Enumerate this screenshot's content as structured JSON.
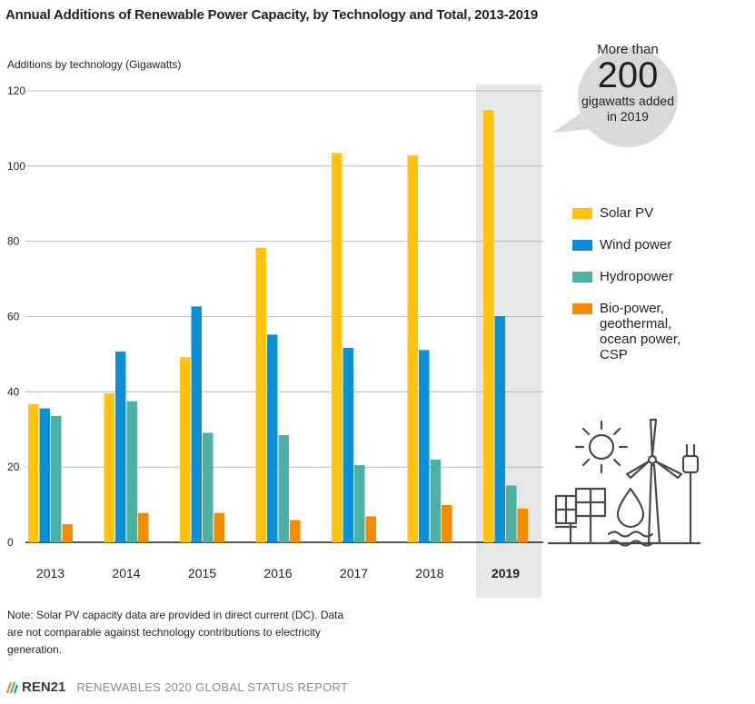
{
  "title": "Annual Additions of Renewable Power Capacity, by Technology and Total, 2013-2019",
  "colors": {
    "solar": "#FFC20E",
    "wind": "#0D8FD6",
    "hydro": "#4DB0A0",
    "bio": "#F08C00",
    "highlight": "#E6E7E8",
    "grid": "#B0B0B0",
    "bubble": "#D9D9D9"
  },
  "bubble": {
    "line1": "More than",
    "number": "200",
    "line3": "gigawatts added",
    "line4": "in 2019"
  },
  "legend": [
    {
      "label": "Solar PV",
      "color_key": "solar"
    },
    {
      "label": "Wind power",
      "color_key": "wind"
    },
    {
      "label": "Hydropower",
      "color_key": "hydro"
    },
    {
      "label": "Bio-power,\ngeothermal,\nocean power,\nCSP",
      "color_key": "bio"
    }
  ],
  "note": "Note: Solar PV capacity data are provided in direct current (DC). Data are not comparable against technology contributions to electricity generation.",
  "footer": {
    "brand": "REN21",
    "report": "RENEWABLES 2020 GLOBAL STATUS REPORT"
  },
  "chart_data": {
    "type": "bar",
    "title": "Annual Additions of Renewable Power Capacity, by Technology and Total, 2013-2019",
    "ylabel": "Additions by technology (Gigawatts)",
    "xlabel": "",
    "ylim": [
      0,
      120
    ],
    "yticks": [
      0,
      20,
      40,
      60,
      80,
      100,
      120
    ],
    "grid": true,
    "legend_position": "right",
    "highlight_category": "2019",
    "categories": [
      "2013",
      "2014",
      "2015",
      "2016",
      "2017",
      "2018",
      "2019"
    ],
    "series": [
      {
        "name": "Solar PV",
        "color_key": "solar",
        "values": [
          36.7,
          39.6,
          49.2,
          78.3,
          103.5,
          102.9,
          114.9
        ]
      },
      {
        "name": "Wind power",
        "color_key": "wind",
        "values": [
          35.6,
          50.7,
          62.7,
          55.2,
          51.7,
          51.1,
          60.1
        ]
      },
      {
        "name": "Hydropower",
        "color_key": "hydro",
        "values": [
          33.6,
          37.5,
          29.1,
          28.5,
          20.5,
          22.0,
          15.1
        ]
      },
      {
        "name": "Bio-power, geothermal, ocean power, CSP",
        "color_key": "bio",
        "values": [
          4.8,
          7.8,
          7.8,
          5.9,
          6.9,
          9.9,
          9.0
        ]
      }
    ]
  }
}
